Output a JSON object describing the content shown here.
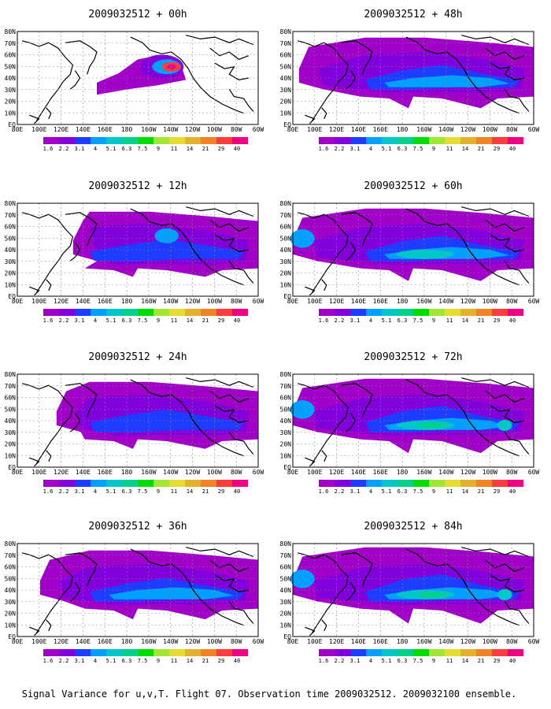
{
  "caption": "Signal Variance for u,v,T. Flight 07. Observation time 2009032512. 2009032100 ensemble.",
  "lon_ticks": [
    "80E",
    "100E",
    "120E",
    "140E",
    "160E",
    "180",
    "160W",
    "140W",
    "120W",
    "100W",
    "80W",
    "60W"
  ],
  "lat_ticks": [
    "EQ",
    "10N",
    "20N",
    "30N",
    "40N",
    "50N",
    "60N",
    "70N",
    "80N"
  ],
  "colorbar": {
    "labels": [
      "1.6",
      "2.2",
      "3.1",
      "4",
      "5.1",
      "6.3",
      "7.5",
      "9",
      "11",
      "14",
      "21",
      "29",
      "40"
    ],
    "colors": [
      "#a000c8",
      "#8200dc",
      "#1e3cff",
      "#00a0ff",
      "#00c8c8",
      "#00d28c",
      "#00dc00",
      "#a0e632",
      "#e6dc32",
      "#e6af2d",
      "#f08228",
      "#fa3c3c",
      "#f00082"
    ]
  },
  "panels": [
    {
      "title": "2009032512 + 00h",
      "hour": 0
    },
    {
      "title": "2009032512 + 12h",
      "hour": 12
    },
    {
      "title": "2009032512 + 24h",
      "hour": 24
    },
    {
      "title": "2009032512 + 36h",
      "hour": 36
    },
    {
      "title": "2009032512 + 48h",
      "hour": 48
    },
    {
      "title": "2009032512 + 60h",
      "hour": 60
    },
    {
      "title": "2009032512 + 72h",
      "hour": 72
    },
    {
      "title": "2009032512 + 84h",
      "hour": 84
    }
  ]
}
